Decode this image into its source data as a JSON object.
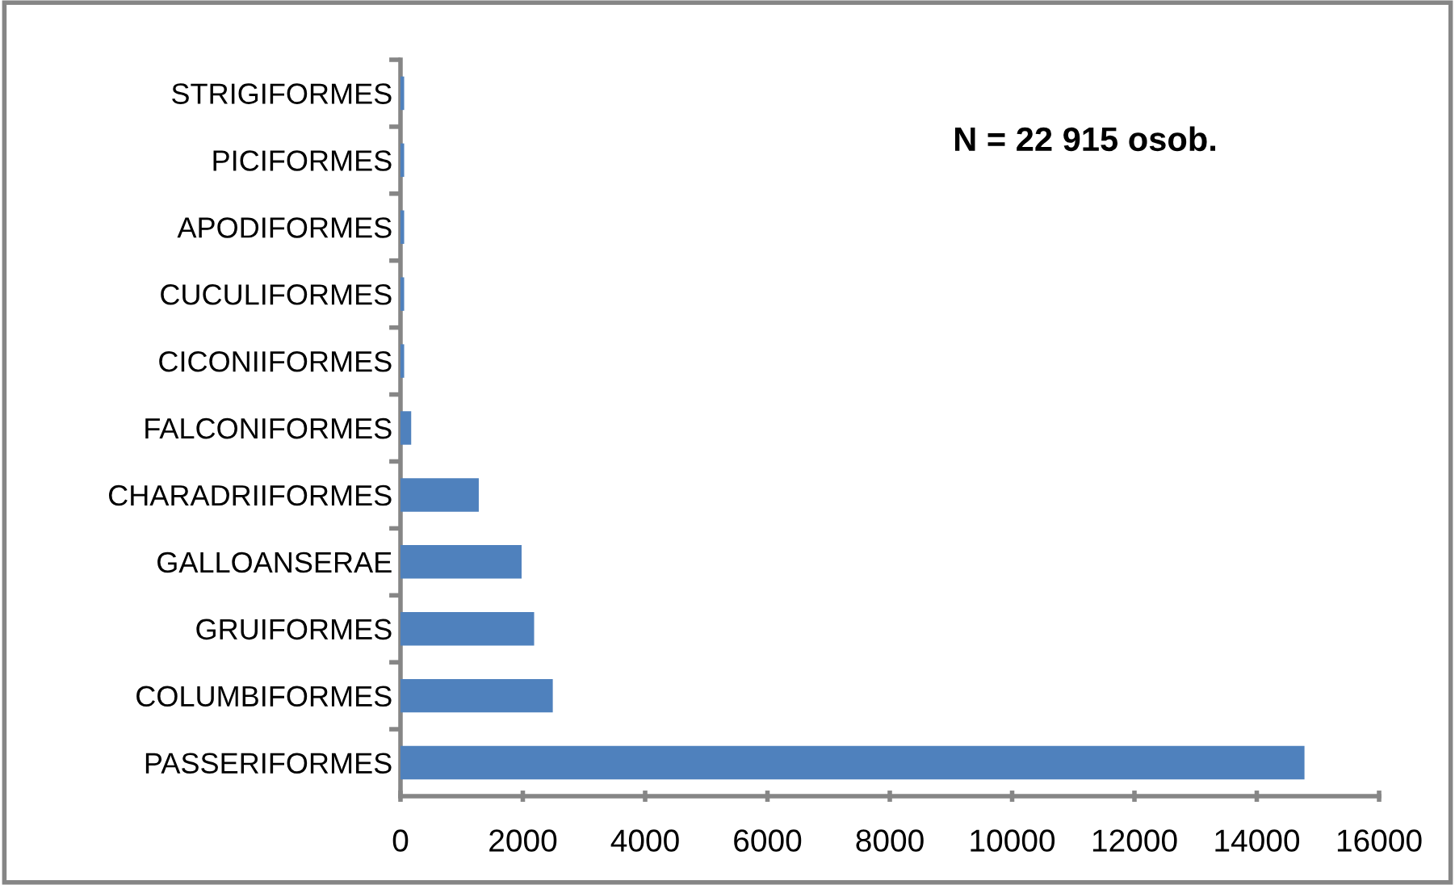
{
  "chart_data": {
    "type": "bar",
    "orientation": "horizontal",
    "categories": [
      "STRIGIFORMES",
      "PICIFORMES",
      "APODIFORMES",
      "CUCULIFORMES",
      "CICONIIFORMES",
      "FALCONIFORMES",
      "CHARADRIIFORMES",
      "GALLOANSERAE",
      "GRUIFORMES",
      "COLUMBIFORMES",
      "PASSERIFORMES"
    ],
    "values": [
      60,
      60,
      60,
      60,
      60,
      175,
      1280,
      1980,
      2185,
      2490,
      14780
    ],
    "color": "#4f81bd",
    "xlim": [
      0,
      16000
    ],
    "xticks": [
      0,
      2000,
      4000,
      6000,
      8000,
      10000,
      12000,
      14000,
      16000
    ],
    "annotations": [
      "N = 22 915 osob."
    ],
    "grid": false
  }
}
